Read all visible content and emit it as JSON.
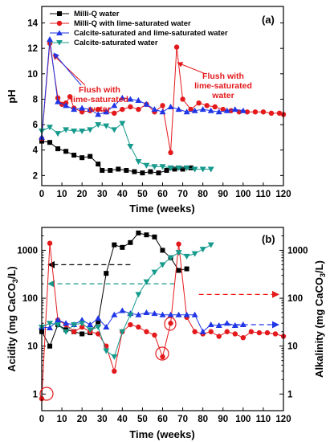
{
  "colors": {
    "milliq": "#000000",
    "milliq_lime": "#e4191c",
    "calcite_lime": "#1f35e6",
    "calcite": "#159a8c"
  },
  "chart_data": [
    {
      "panel": "(a)",
      "type": "line",
      "xlabel": "Time (weeks)",
      "ylabel": "pH",
      "xlim": [
        0,
        120
      ],
      "ylim": [
        1.2,
        15.3
      ],
      "xticks": [
        0,
        10,
        20,
        30,
        40,
        50,
        60,
        70,
        80,
        90,
        100,
        110,
        120
      ],
      "yticks": [
        2,
        4,
        6,
        8,
        10,
        12,
        14
      ],
      "legend": [
        "Milli-Q water",
        "Milli-Q with lime-saturated water",
        "Calcite-saturated and lime-saturated water",
        "Calcite-saturated water"
      ],
      "legend_position": "top-left",
      "series": [
        {
          "name": "Milli-Q water",
          "color": "#000000",
          "marker": "square",
          "x": [
            0,
            4,
            8,
            12,
            16,
            20,
            24,
            28,
            30,
            34,
            38,
            42,
            46,
            50,
            54,
            58,
            62,
            66,
            70,
            74
          ],
          "y": [
            4.7,
            4.6,
            4.1,
            3.9,
            3.6,
            3.4,
            3.5,
            2.9,
            2.4,
            2.4,
            2.5,
            2.4,
            2.3,
            2.2,
            2.3,
            2.2,
            2.4,
            2.5,
            2.5,
            2.6
          ]
        },
        {
          "name": "Milli-Q with lime-saturated water",
          "color": "#e4191c",
          "marker": "circle",
          "x": [
            0,
            4,
            8,
            10,
            12,
            14,
            16,
            20,
            24,
            28,
            32,
            36,
            40,
            44,
            48,
            52,
            56,
            60,
            64,
            67,
            70,
            74,
            78,
            82,
            86,
            90,
            94,
            98,
            102,
            106,
            110,
            114,
            118,
            120
          ],
          "y": [
            4.9,
            12.4,
            8.1,
            7.6,
            7.7,
            8.2,
            7.3,
            7.0,
            7.1,
            7.2,
            7.0,
            6.9,
            7.2,
            7.4,
            7.2,
            7.6,
            7.0,
            7.5,
            3.8,
            12.1,
            8.0,
            7.2,
            7.7,
            7.5,
            7.4,
            7.2,
            7.1,
            7.0,
            7.0,
            7.0,
            7.0,
            6.9,
            6.9,
            6.8
          ]
        },
        {
          "name": "Calcite-saturated and lime-saturated water",
          "color": "#1f35e6",
          "marker": "triangle-up",
          "x": [
            0,
            4,
            8,
            12,
            16,
            20,
            24,
            28,
            32,
            36,
            40,
            44,
            48,
            52,
            56,
            60,
            64,
            68,
            72,
            76,
            80,
            84,
            88,
            92,
            96,
            100
          ],
          "y": [
            5.0,
            12.7,
            7.8,
            7.5,
            7.2,
            7.3,
            7.2,
            6.8,
            7.0,
            7.5,
            8.1,
            8.0,
            7.9,
            7.6,
            7.2,
            7.0,
            7.4,
            7.2,
            7.0,
            7.1,
            7.2,
            7.1,
            7.0,
            7.1,
            7.2,
            7.1
          ]
        },
        {
          "name": "Calcite-saturated water",
          "color": "#159a8c",
          "marker": "triangle-down",
          "x": [
            0,
            4,
            8,
            12,
            16,
            20,
            24,
            28,
            32,
            36,
            40,
            44,
            48,
            52,
            56,
            60,
            64,
            68,
            72,
            76,
            80,
            84
          ],
          "y": [
            5.5,
            5.8,
            5.3,
            5.6,
            5.5,
            5.5,
            5.6,
            6.0,
            5.9,
            5.6,
            6.1,
            4.3,
            3.1,
            2.8,
            2.7,
            2.7,
            2.6,
            2.6,
            2.6,
            2.5,
            2.5,
            2.5
          ]
        }
      ],
      "annotations": [
        {
          "text": [
            "Flush with",
            "lime-saturated",
            "water"
          ],
          "color": "#e4191c"
        },
        {
          "text": [
            "Flush with",
            "lime-saturated",
            "water"
          ],
          "color": "#e4191c"
        }
      ]
    },
    {
      "panel": "(b)",
      "type": "line",
      "xlabel": "Time (weeks)",
      "ylabel": "Acidity (mg CaCO3/L)",
      "ylabel2": "Alkalinity (mg CaCO3/L)",
      "yscale": "log",
      "xlim": [
        0,
        120
      ],
      "ylim": [
        0.45,
        3000
      ],
      "xticks": [
        0,
        10,
        20,
        30,
        40,
        50,
        60,
        70,
        80,
        90,
        100,
        110,
        120
      ],
      "yticks": [
        1,
        10,
        100,
        1000
      ],
      "series": [
        {
          "name": "Milli-Q water",
          "color": "#000000",
          "marker": "square",
          "x": [
            0,
            4,
            8,
            12,
            16,
            20,
            24,
            28,
            32,
            36,
            40,
            44,
            48,
            52,
            56,
            60,
            64,
            68,
            72
          ],
          "y": [
            20,
            10,
            28,
            22,
            20,
            18,
            19,
            32,
            330,
            1300,
            1150,
            1450,
            2300,
            2100,
            1900,
            1000,
            700,
            380,
            410
          ]
        },
        {
          "name": "Milli-Q with lime-saturated water",
          "color": "#e4191c",
          "marker": "circle",
          "x": [
            0,
            4,
            8,
            12,
            16,
            20,
            24,
            28,
            32,
            36,
            40,
            44,
            48,
            52,
            56,
            60,
            64,
            68,
            72,
            76,
            80,
            84,
            88,
            92,
            96,
            100,
            104,
            108,
            112,
            116,
            120
          ],
          "y": [
            0.8,
            1400,
            35,
            28,
            20,
            25,
            20,
            18,
            10,
            3,
            20,
            28,
            25,
            20,
            17,
            6,
            30,
            1350,
            40,
            20,
            18,
            20,
            16,
            20,
            18,
            15,
            20,
            19,
            19,
            18,
            16
          ]
        },
        {
          "name": "Calcite-saturated and lime-saturated water",
          "color": "#1f35e6",
          "marker": "triangle-up",
          "x": [
            0,
            4,
            8,
            12,
            16,
            20,
            24,
            28,
            32,
            36,
            40,
            44,
            48,
            52,
            56,
            60,
            64,
            68,
            72,
            76,
            80,
            84,
            88,
            92,
            96,
            100
          ],
          "y": [
            25,
            24,
            35,
            30,
            28,
            35,
            28,
            38,
            25,
            45,
            55,
            48,
            45,
            50,
            48,
            45,
            45,
            45,
            45,
            45,
            20,
            28,
            27,
            30,
            27,
            28
          ]
        },
        {
          "name": "Calcite-saturated water",
          "color": "#159a8c",
          "marker": "triangle-down",
          "x": [
            0,
            4,
            8,
            12,
            16,
            20,
            24,
            28,
            32,
            36,
            40,
            44,
            48,
            52,
            56,
            60,
            64,
            68,
            72,
            76,
            80,
            84
          ],
          "y": [
            25,
            30,
            28,
            20,
            28,
            30,
            22,
            25,
            8,
            6,
            20,
            45,
            120,
            220,
            350,
            500,
            700,
            900,
            750,
            850,
            1050,
            1300
          ]
        }
      ],
      "reference_arrows": [
        {
          "y": 500,
          "color": "#000000",
          "direction": "left"
        },
        {
          "y": 200,
          "color": "#159a8c",
          "direction": "left"
        },
        {
          "y": 120,
          "color": "#e4191c",
          "direction": "right"
        },
        {
          "y": 28,
          "color": "#1f35e6",
          "direction": "right"
        }
      ]
    }
  ]
}
